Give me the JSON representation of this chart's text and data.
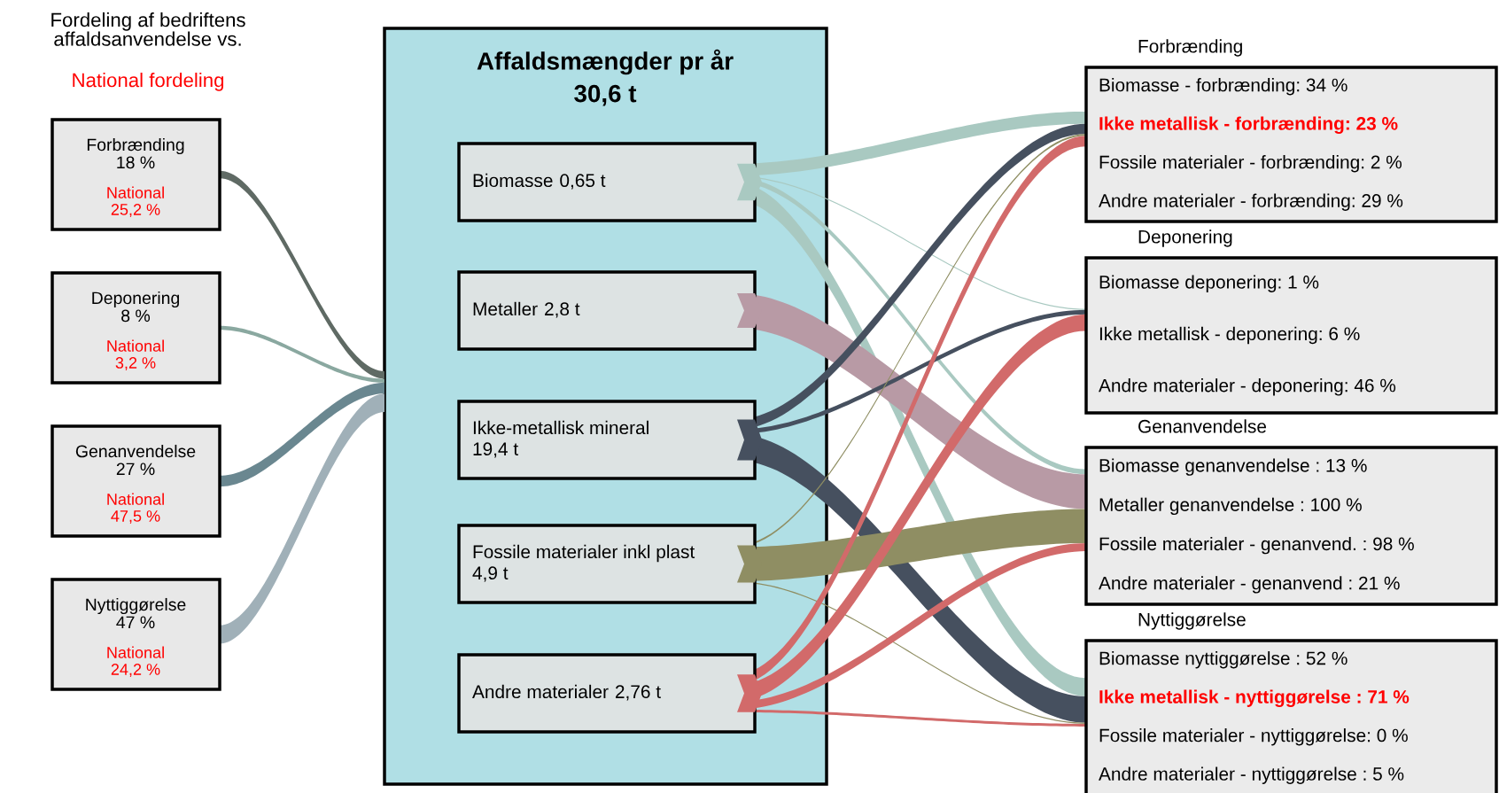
{
  "chart_data": [
    {
      "type": "other",
      "annotations": [
        "Fordeling af bedriftens\naffaldsanvendelse vs.",
        "National fordeling"
      ],
      "categories": [
        "Forbrænding",
        "Deponering",
        "Genanvendelse",
        "Nyttiggørelse"
      ],
      "colors": [
        "#5f6a64",
        "#8aa8a0",
        "#6a8790",
        "#a0b0b8"
      ],
      "series": [
        {
          "color": "#000000",
          "values": [
            18,
            8,
            27,
            47
          ],
          "value_labels": [
            "18 %",
            "8 %",
            "27 %",
            "47 %"
          ]
        },
        {
          "name": "National",
          "color": "#ff0000",
          "values": [
            25.2,
            3.2,
            47.5,
            24.2
          ],
          "value_labels": [
            "25,2 %",
            "3,2 %",
            "47,5 %",
            "24,2 %"
          ]
        }
      ]
    },
    {
      "type": "other",
      "title": "Affaldsmængder pr år",
      "subtitle": "30,6 t",
      "categories": [
        "Biomasse",
        "Metaller",
        "Ikke-metallisk mineral",
        "Fossile materialer inkl plast",
        "Andre materialer"
      ],
      "values": [
        0.65,
        2.8,
        19.4,
        4.9,
        2.76
      ],
      "value_labels": [
        "0,65 t",
        "2,8 t",
        "19,4 t",
        "4,9 t",
        "2,76 t"
      ]
    },
    {
      "type": "other",
      "title": "Forbrænding",
      "categories": [
        null,
        null,
        null,
        null,
        null
      ],
      "values": [
        34,
        null,
        23,
        2,
        29
      ],
      "value_labels": [
        "Biomasse - forbrænding: 34 %",
        null,
        "Ikke metallisk - forbrænding: 23 %",
        "Fossile materialer - forbrænding: 2 %",
        "Andre materialer - forbrænding: 29 %"
      ],
      "colors": [
        "#000000",
        null,
        "#ff0000",
        "#000000",
        "#000000"
      ]
    },
    {
      "type": "other",
      "title": "Deponering",
      "categories": [
        null,
        null,
        null,
        null,
        null
      ],
      "values": [
        1,
        null,
        6,
        null,
        46
      ],
      "value_labels": [
        "Biomasse deponering: 1 %",
        null,
        "Ikke metallisk - deponering: 6 %",
        null,
        "Andre materialer - deponering: 46 %"
      ],
      "colors": [
        "#000000",
        null,
        "#000000",
        null,
        "#000000"
      ]
    },
    {
      "type": "other",
      "title": "Genanvendelse",
      "categories": [
        null,
        null,
        null,
        null,
        null
      ],
      "values": [
        13,
        100,
        null,
        98,
        21
      ],
      "value_labels": [
        "Biomasse genanvendelse : 13 %",
        "Metaller genanvendelse : 100 %",
        null,
        "Fossile materialer - genanvend. : 98 %",
        "Andre materialer - genanvend : 21 %"
      ],
      "colors": [
        "#000000",
        "#000000",
        null,
        "#000000",
        "#000000"
      ]
    },
    {
      "type": "other",
      "title": "Nyttiggørelse",
      "categories": [
        null,
        null,
        null,
        null,
        null
      ],
      "values": [
        52,
        null,
        71,
        0,
        5
      ],
      "value_labels": [
        "Biomasse nyttiggørelse : 52 %",
        null,
        "Ikke metallisk - nyttiggørelse : 71 %",
        "Fossile materialer - nyttiggørelse: 0 %",
        "Andre materialer - nyttiggørelse : 5 %"
      ],
      "colors": [
        "#000000",
        null,
        "#ff0000",
        "#000000",
        "#000000"
      ]
    }
  ]
}
